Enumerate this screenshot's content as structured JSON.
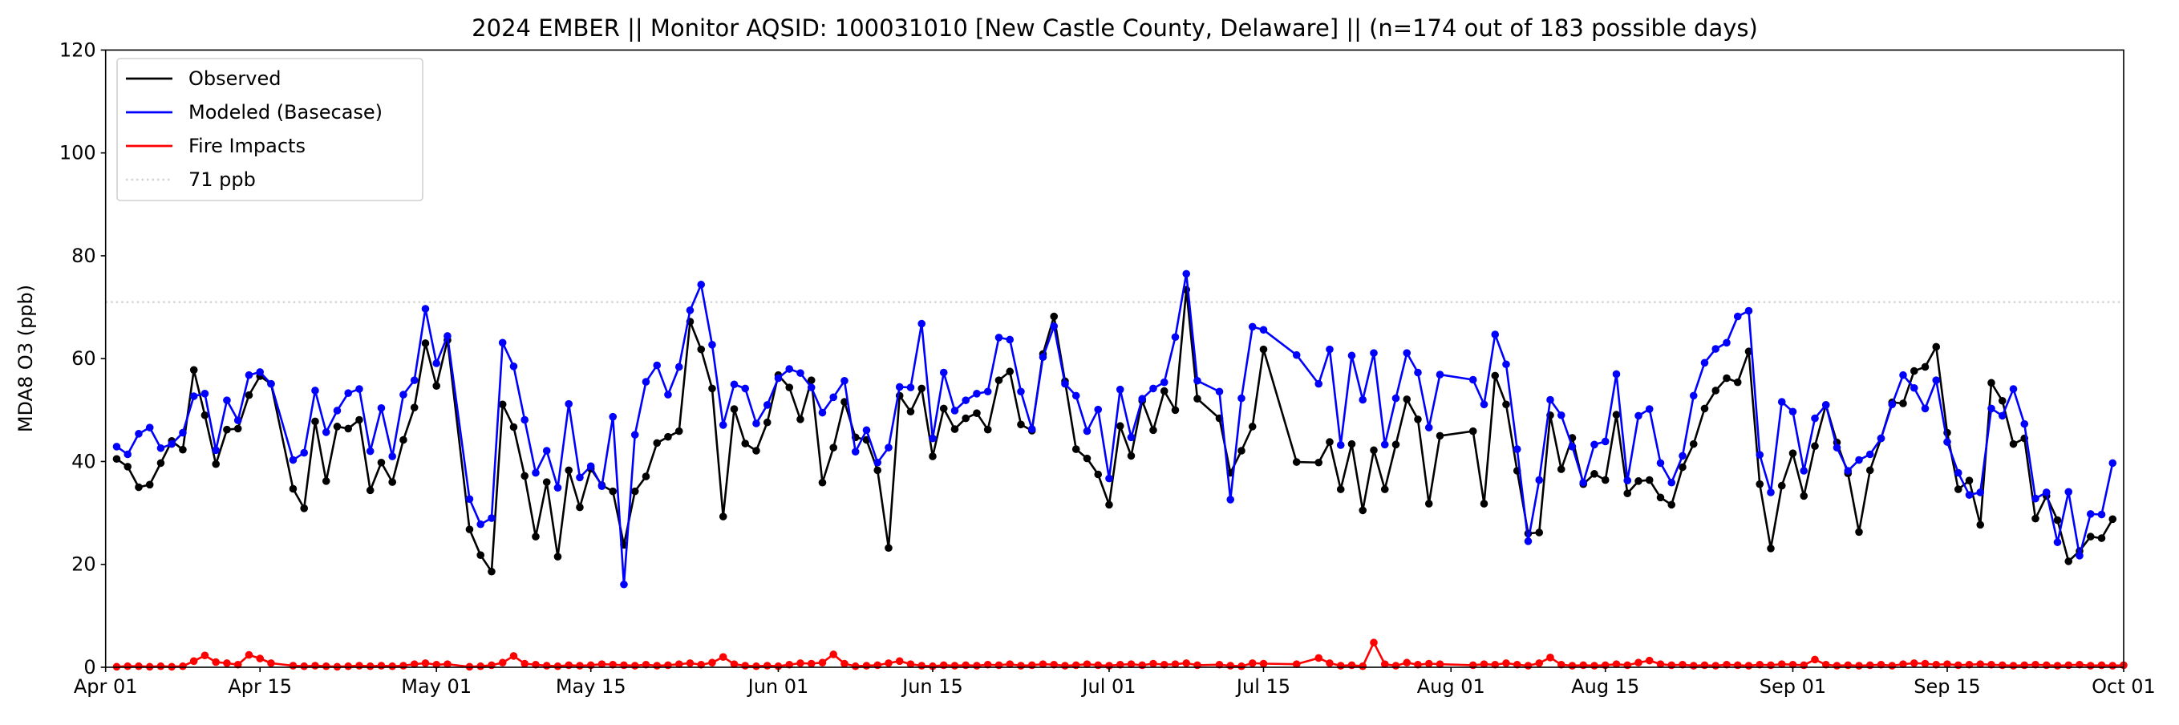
{
  "chart_data": {
    "type": "line",
    "title": "2024 EMBER || Monitor AQSID: 100031010 [New Castle County, Delaware] || (n=174 out of 183 possible days)",
    "xlabel": "",
    "ylabel": "MDA8 O3 (ppb)",
    "ylim": [
      0,
      120
    ],
    "yticks": [
      "0",
      "20",
      "40",
      "60",
      "80",
      "100",
      "120"
    ],
    "x_start_date": "2024-04-01",
    "x_days": 183,
    "xticks": [
      {
        "label": "Apr 01",
        "day": 0
      },
      {
        "label": "Apr 15",
        "day": 14
      },
      {
        "label": "May 01",
        "day": 30
      },
      {
        "label": "May 15",
        "day": 44
      },
      {
        "label": "Jun 01",
        "day": 61
      },
      {
        "label": "Jun 15",
        "day": 75
      },
      {
        "label": "Jul 01",
        "day": 91
      },
      {
        "label": "Jul 15",
        "day": 105
      },
      {
        "label": "Aug 01",
        "day": 122
      },
      {
        "label": "Aug 15",
        "day": 136
      },
      {
        "label": "Sep 01",
        "day": 153
      },
      {
        "label": "Sep 15",
        "day": 167
      },
      {
        "label": "Oct 01",
        "day": 183
      }
    ],
    "grid": false,
    "legend_position": "top-left",
    "reference_line": {
      "label": "71 ppb",
      "value": 71,
      "color": "#d3d3d3"
    },
    "series": [
      {
        "name": "Observed",
        "color": "#000000",
        "values": [
          null,
          40.5,
          39.0,
          35.0,
          35.5,
          39.7,
          44.0,
          42.3,
          57.8,
          49.0,
          39.5,
          46.2,
          46.4,
          52.9,
          56.6,
          55.1,
          null,
          34.7,
          30.9,
          47.8,
          36.2,
          46.8,
          46.4,
          48.1,
          34.4,
          39.8,
          36.0,
          44.2,
          50.5,
          63.0,
          54.7,
          63.6,
          null,
          26.8,
          21.8,
          18.6,
          51.1,
          46.7,
          37.2,
          25.4,
          36.0,
          21.5,
          38.3,
          31.1,
          38.6,
          35.4,
          34.2,
          23.8,
          34.2,
          37.1,
          43.6,
          44.8,
          45.9,
          67.2,
          61.8,
          54.2,
          29.3,
          50.2,
          43.5,
          42.1,
          47.6,
          56.8,
          54.4,
          48.2,
          55.8,
          35.9,
          42.7,
          51.6,
          44.7,
          44.2,
          38.3,
          23.2,
          52.8,
          49.7,
          54.2,
          41.0,
          50.3,
          46.3,
          48.4,
          49.4,
          46.2,
          55.8,
          57.5,
          47.2,
          46.0,
          60.9,
          68.2,
          55.6,
          42.4,
          40.6,
          37.5,
          31.6,
          46.9,
          41.1,
          51.8,
          46.1,
          53.7,
          50.0,
          73.4,
          52.2,
          null,
          48.4,
          37.8,
          42.1,
          46.8,
          61.8,
          null,
          null,
          39.9,
          null,
          39.8,
          43.8,
          34.6,
          43.4,
          30.5,
          42.2,
          34.6,
          43.3,
          52.1,
          48.2,
          31.8,
          45.0,
          null,
          null,
          45.9,
          31.8,
          56.7,
          51.1,
          38.2,
          26.0,
          26.2,
          49.0,
          38.5,
          44.6,
          35.6,
          37.6,
          36.4,
          49.1,
          33.8,
          36.2,
          36.4,
          33.0,
          31.6,
          38.9,
          43.4,
          50.3,
          53.8,
          56.2,
          55.4,
          61.4,
          35.6,
          23.1,
          35.3,
          41.6,
          33.3,
          43.0,
          51.0,
          43.7,
          37.7,
          26.3,
          38.3,
          44.5,
          51.5,
          51.3,
          57.6,
          58.4,
          62.3,
          45.6,
          34.6,
          36.3,
          27.7,
          55.3,
          51.8,
          43.4,
          44.5,
          28.9,
          33.3,
          28.6,
          20.6,
          22.6,
          25.4,
          25.1,
          28.8
        ]
      },
      {
        "name": "Modeled (Basecase)",
        "color": "#0000ff",
        "values": [
          null,
          42.9,
          41.4,
          45.4,
          46.6,
          42.6,
          43.4,
          45.6,
          52.7,
          53.2,
          42.2,
          51.9,
          48.0,
          56.8,
          57.4,
          55.1,
          null,
          40.3,
          41.7,
          53.8,
          45.7,
          49.9,
          53.3,
          54.1,
          42.0,
          50.4,
          41.0,
          53.0,
          55.8,
          69.7,
          59.1,
          64.4,
          null,
          32.7,
          27.8,
          29.0,
          63.1,
          58.5,
          48.1,
          37.8,
          42.1,
          34.9,
          51.2,
          36.9,
          39.1,
          35.2,
          48.7,
          16.1,
          45.2,
          55.5,
          58.7,
          53.0,
          58.4,
          69.4,
          74.4,
          62.7,
          47.1,
          55.0,
          54.2,
          47.4,
          51.0,
          56.2,
          58.0,
          57.2,
          54.4,
          49.5,
          52.5,
          55.7,
          41.9,
          46.1,
          39.8,
          42.7,
          54.5,
          54.4,
          66.8,
          44.5,
          57.3,
          49.9,
          51.9,
          53.2,
          53.6,
          64.1,
          63.7,
          53.6,
          46.3,
          60.3,
          66.3,
          55.1,
          52.8,
          45.9,
          50.1,
          36.7,
          54.0,
          44.7,
          52.2,
          54.2,
          55.4,
          64.2,
          76.5,
          55.7,
          null,
          53.6,
          32.6,
          52.3,
          66.2,
          65.6,
          null,
          null,
          60.7,
          null,
          55.1,
          61.8,
          43.2,
          60.6,
          52.0,
          61.1,
          43.3,
          52.3,
          61.1,
          57.3,
          46.6,
          56.9,
          null,
          null,
          55.9,
          51.1,
          64.7,
          58.9,
          42.4,
          24.5,
          36.4,
          52.0,
          49.0,
          42.9,
          35.9,
          43.3,
          43.9,
          57.0,
          36.3,
          48.9,
          50.2,
          39.7,
          35.9,
          41.1,
          52.8,
          59.2,
          61.9,
          63.1,
          68.2,
          69.3,
          41.3,
          34.0,
          51.6,
          49.7,
          38.2,
          48.4,
          51.0,
          42.7,
          38.2,
          40.3,
          41.4,
          44.5,
          51.1,
          56.8,
          54.3,
          50.3,
          55.8,
          43.8,
          37.8,
          33.5,
          34.0,
          50.3,
          48.9,
          54.1,
          47.3,
          32.8,
          34.0,
          24.3,
          34.1,
          21.7,
          29.8,
          29.7,
          39.7
        ]
      },
      {
        "name": "Fire Impacts",
        "color": "#ff0000",
        "values": [
          null,
          0.1,
          0.2,
          0.2,
          0.1,
          0.2,
          0.1,
          0.2,
          1.2,
          2.3,
          1.0,
          0.8,
          0.5,
          2.4,
          1.7,
          0.8,
          null,
          0.3,
          0.2,
          0.3,
          0.2,
          0.1,
          0.2,
          0.3,
          0.2,
          0.3,
          0.2,
          0.3,
          0.6,
          0.8,
          0.5,
          0.6,
          null,
          0.1,
          0.2,
          0.4,
          0.9,
          2.2,
          0.7,
          0.5,
          0.3,
          0.2,
          0.4,
          0.3,
          0.4,
          0.6,
          0.5,
          0.4,
          0.3,
          0.5,
          0.3,
          0.4,
          0.6,
          0.8,
          0.5,
          0.9,
          2.0,
          0.6,
          0.3,
          0.2,
          0.3,
          0.2,
          0.5,
          0.8,
          0.7,
          0.9,
          2.5,
          0.7,
          0.2,
          0.3,
          0.4,
          0.8,
          1.2,
          0.6,
          0.3,
          0.2,
          0.4,
          0.3,
          0.4,
          0.3,
          0.5,
          0.4,
          0.6,
          0.3,
          0.4,
          0.6,
          0.5,
          0.3,
          0.4,
          0.6,
          0.4,
          0.3,
          0.5,
          0.6,
          0.4,
          0.7,
          0.5,
          0.6,
          0.8,
          0.4,
          null,
          0.5,
          0.3,
          0.2,
          0.8,
          0.7,
          null,
          null,
          0.6,
          null,
          1.8,
          0.8,
          0.3,
          0.4,
          0.2,
          4.8,
          0.6,
          0.3,
          0.9,
          0.5,
          0.7,
          0.6,
          null,
          null,
          0.4,
          0.6,
          0.5,
          0.8,
          0.5,
          0.3,
          0.8,
          1.9,
          0.5,
          0.3,
          0.4,
          0.3,
          0.4,
          0.6,
          0.4,
          0.9,
          1.3,
          0.6,
          0.4,
          0.5,
          0.3,
          0.4,
          0.3,
          0.5,
          0.4,
          0.3,
          0.5,
          0.4,
          0.6,
          0.5,
          0.4,
          1.5,
          0.5,
          0.3,
          0.4,
          0.3,
          0.4,
          0.5,
          0.3,
          0.6,
          0.8,
          0.7,
          0.5,
          0.6,
          0.4,
          0.5,
          0.6,
          0.5,
          0.4,
          0.3,
          0.4,
          0.5,
          0.4,
          0.3,
          0.4,
          0.5,
          0.3,
          0.4,
          0.3,
          0.4
        ]
      }
    ]
  }
}
